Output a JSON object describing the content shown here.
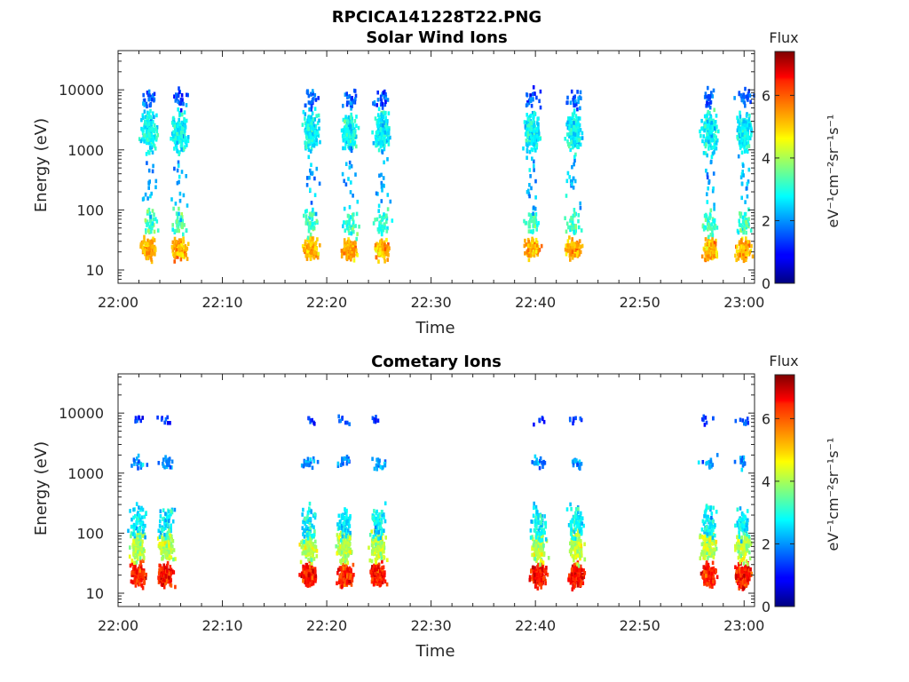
{
  "figure": {
    "title_line1": "RPCICA141228T22.PNG",
    "title_line2": "Solar Wind Ions"
  },
  "chart_data": [
    {
      "type": "heatmap",
      "title": "Solar Wind Ions",
      "xlabel": "Time",
      "ylabel": "Energy (eV)",
      "x_ticks": [
        "22:00",
        "22:10",
        "22:20",
        "22:30",
        "22:40",
        "22:50",
        "23:00"
      ],
      "x_range_minutes": [
        0,
        61
      ],
      "y_ticks": [
        10,
        100,
        1000,
        10000
      ],
      "y_tick_labels": [
        "10",
        "100",
        "1000",
        "10000"
      ],
      "y_scale": "log",
      "y_range": [
        6,
        45000
      ],
      "colorbar": {
        "label": "Flux",
        "unit": "eV⁻¹cm⁻²sr⁻¹s⁻¹",
        "range": [
          0,
          7.4
        ],
        "ticks": [
          0,
          2,
          4,
          6
        ],
        "colormap": "jet"
      },
      "bursts_minutes": [
        2.9,
        5.8,
        18.4,
        22.1,
        25.2,
        39.6,
        43.6,
        56.6,
        59.9
      ],
      "clusters": [
        {
          "e_center": 2000,
          "e_spread": 0.22,
          "flux": 2.8,
          "count": 160
        },
        {
          "e_center": 22,
          "e_spread": 0.12,
          "flux": 5.2,
          "count": 110
        },
        {
          "e_center": 60,
          "e_spread": 0.15,
          "flux": 3.2,
          "count": 40
        },
        {
          "e_center": 7000,
          "e_spread": 0.12,
          "flux": 1.6,
          "count": 25
        },
        {
          "e_center": 300,
          "e_spread": 0.45,
          "flux": 2.2,
          "count": 18
        }
      ]
    },
    {
      "type": "heatmap",
      "title": "Cometary Ions",
      "xlabel": "Time",
      "ylabel": "Energy (eV)",
      "x_ticks": [
        "22:00",
        "22:10",
        "22:20",
        "22:30",
        "22:40",
        "22:50",
        "23:00"
      ],
      "x_range_minutes": [
        0,
        61
      ],
      "y_ticks": [
        10,
        100,
        1000,
        10000
      ],
      "y_tick_labels": [
        "10",
        "100",
        "1000",
        "10000"
      ],
      "y_scale": "log",
      "y_range": [
        6,
        45000
      ],
      "colorbar": {
        "label": "Flux",
        "unit": "eV⁻¹cm⁻²sr⁻¹s⁻¹",
        "range": [
          0,
          7.4
        ],
        "ticks": [
          0,
          2,
          4,
          6
        ],
        "colormap": "jet"
      },
      "bursts_minutes": [
        1.8,
        4.5,
        18.2,
        21.6,
        24.8,
        40.2,
        43.8,
        56.5,
        59.8
      ],
      "clusters": [
        {
          "e_center": 20,
          "e_spread": 0.13,
          "flux": 6.3,
          "count": 160
        },
        {
          "e_center": 60,
          "e_spread": 0.18,
          "flux": 4.1,
          "count": 120
        },
        {
          "e_center": 150,
          "e_spread": 0.2,
          "flux": 2.7,
          "count": 60
        },
        {
          "e_center": 1500,
          "e_spread": 0.08,
          "flux": 2.0,
          "count": 18
        },
        {
          "e_center": 7500,
          "e_spread": 0.06,
          "flux": 1.3,
          "count": 8
        }
      ]
    }
  ]
}
